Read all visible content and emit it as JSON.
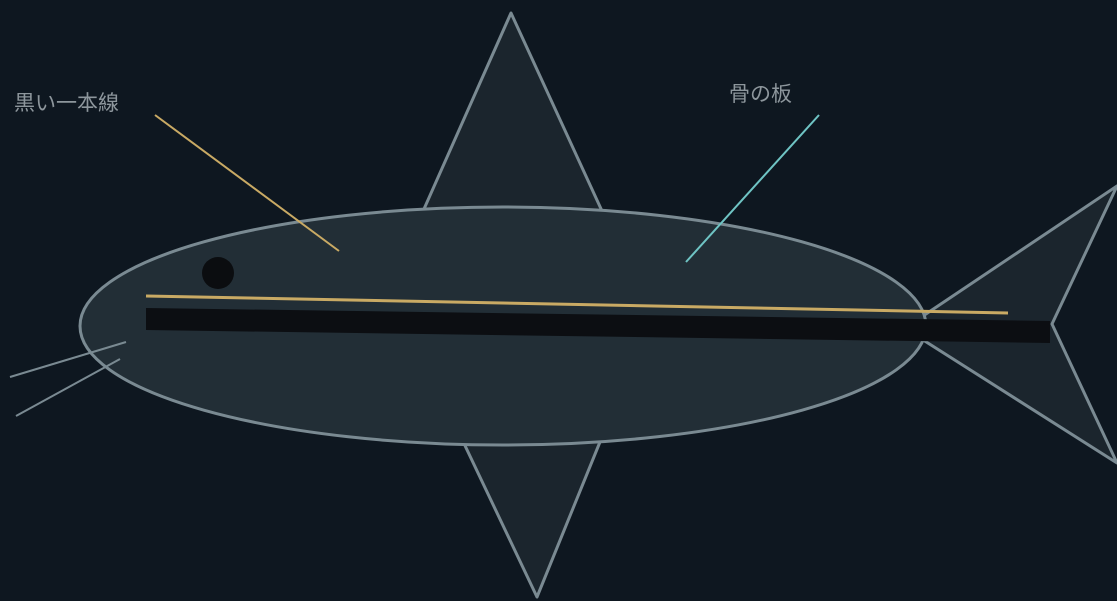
{
  "labels": {
    "black_line": "黒い一本線",
    "bone_plate": "骨の板"
  },
  "colors": {
    "background": "#0e1720",
    "body_fill": "#222e36",
    "fin_fill": "#1b252d",
    "outline": "#7a8a92",
    "black_stripe": "#0c0e12",
    "gold_line": "#c9aa64",
    "teal_leader": "#6fc4c4",
    "eye": "#0b0d10",
    "label_text": "#8d969c"
  }
}
